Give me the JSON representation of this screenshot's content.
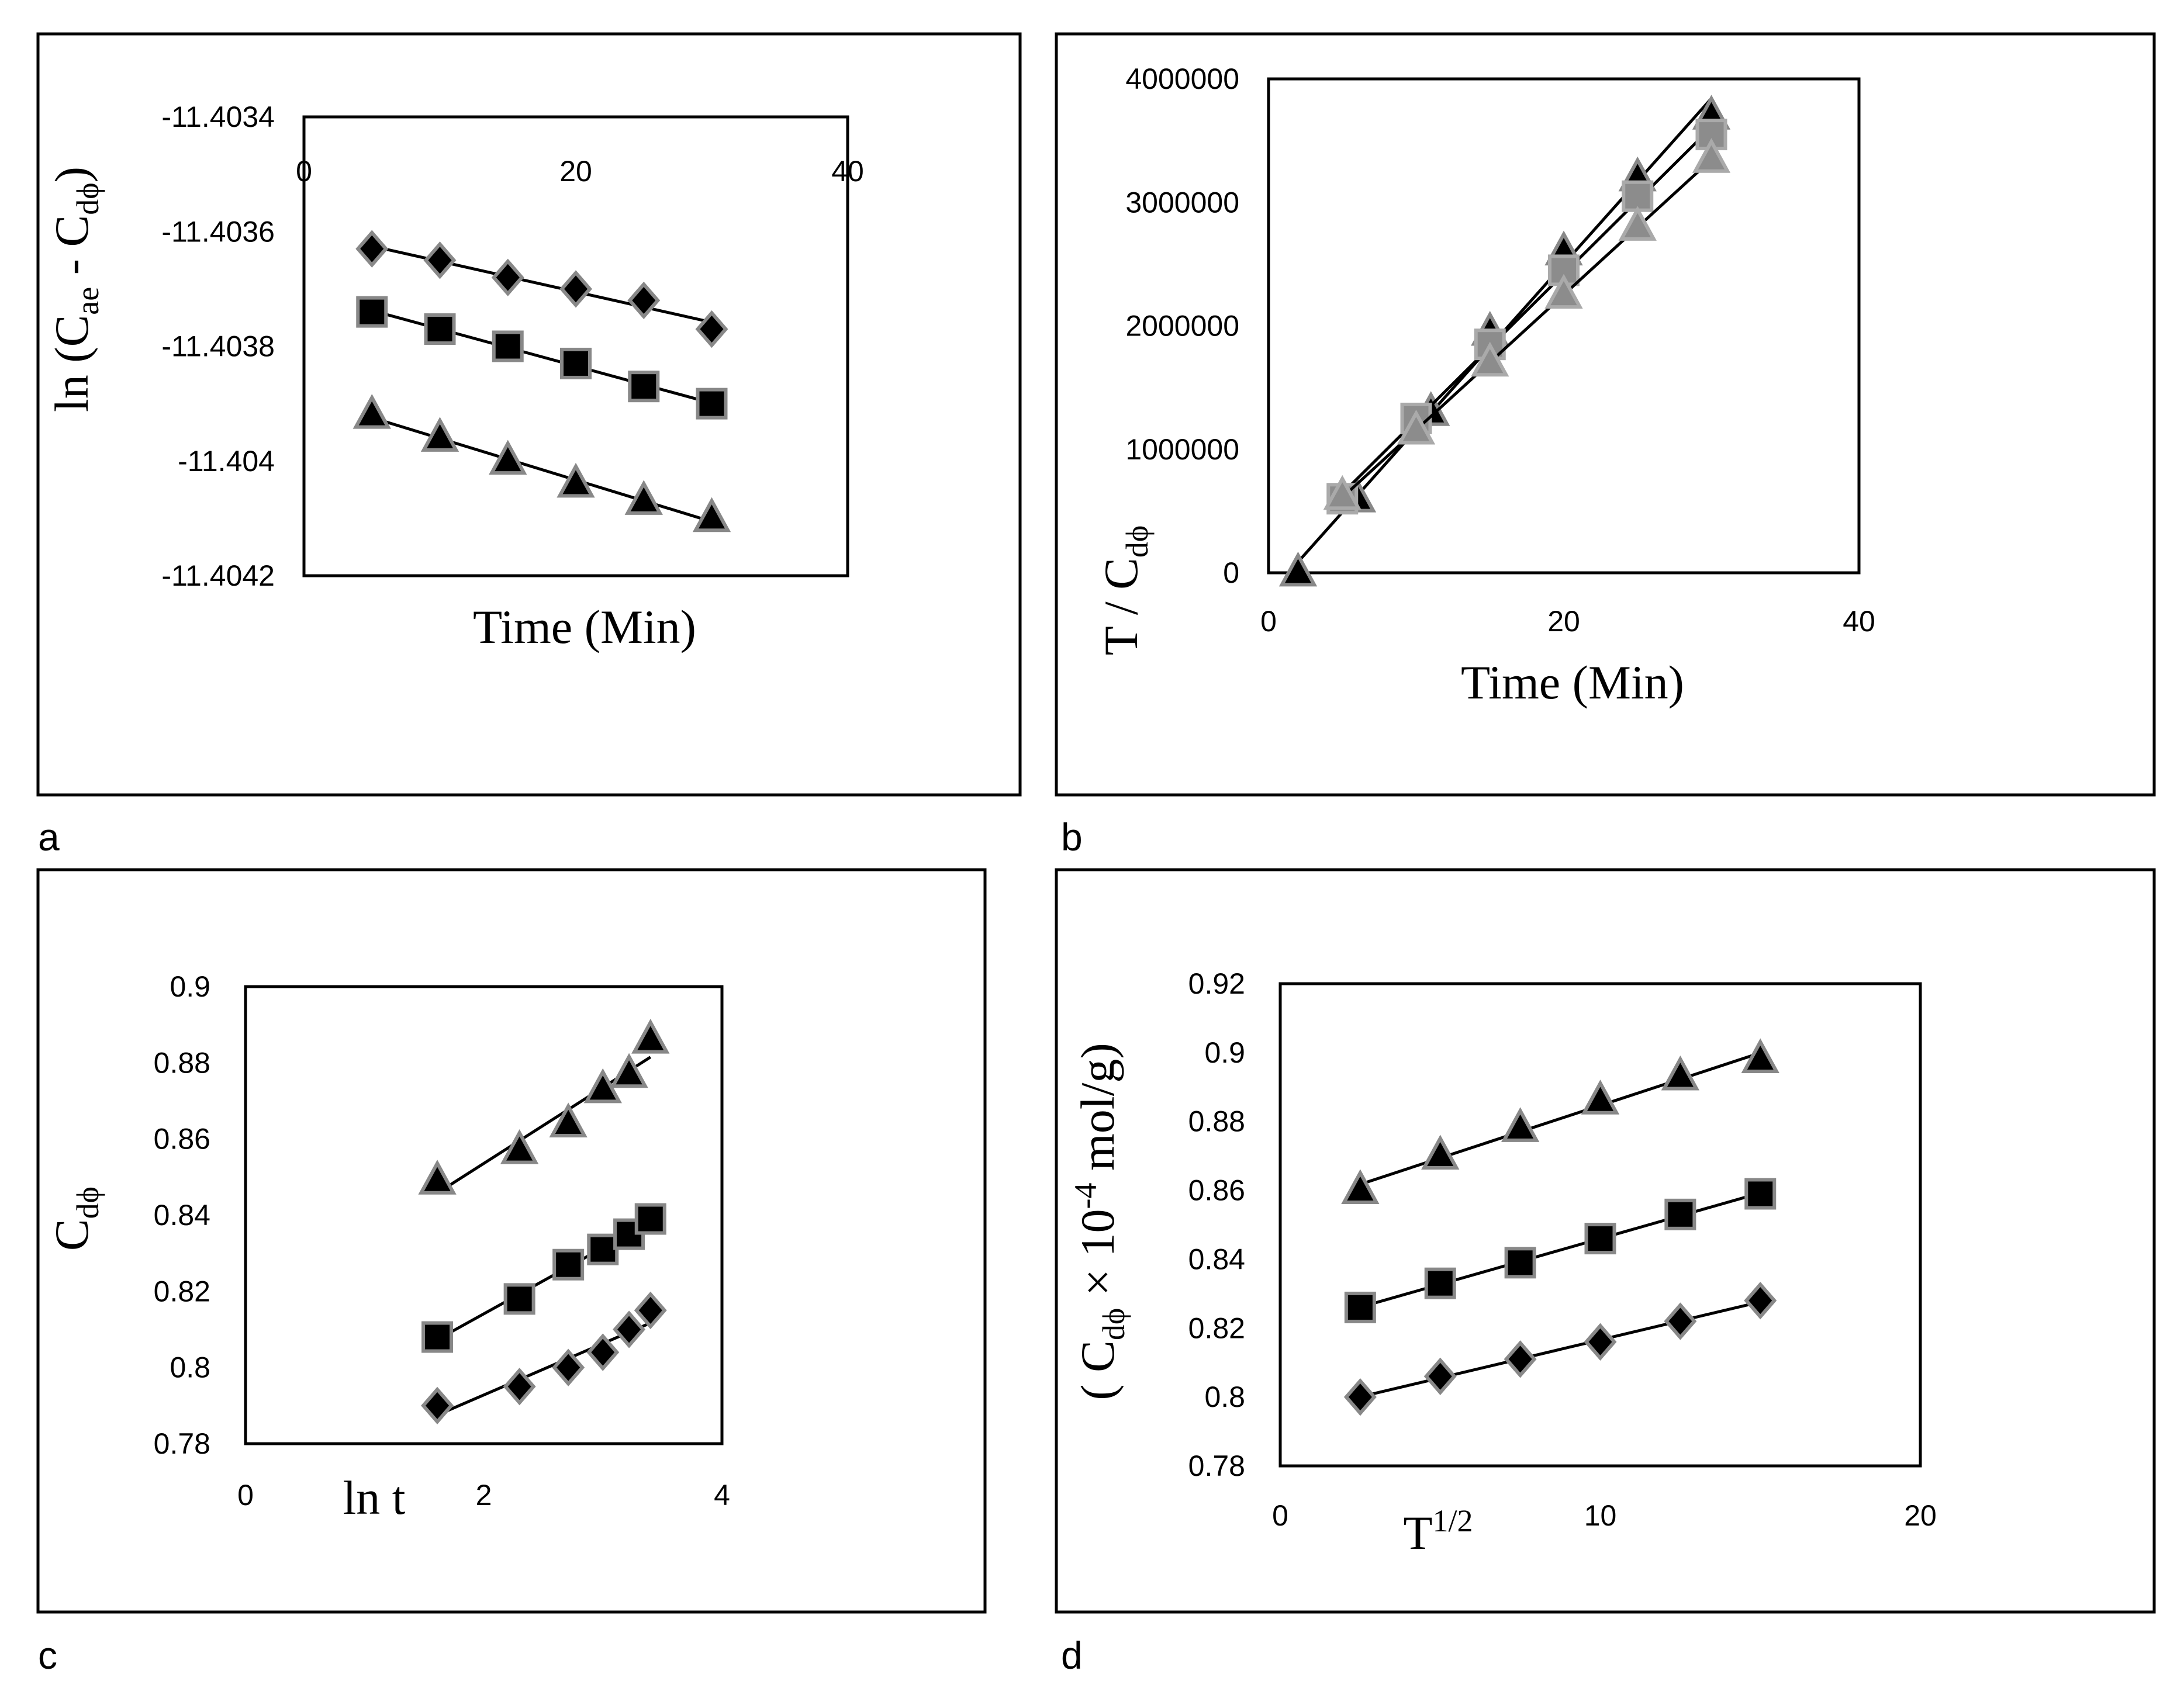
{
  "chart_data": [
    {
      "id": "a",
      "type": "scatter",
      "panel_letter": "a",
      "xlabel": "Time (Min)",
      "ylabel": {
        "prefix": "ln  (C",
        "sub1": "ae",
        "mid": " - C",
        "sub2": "dϕ",
        "suffix": ")"
      },
      "xlim": [
        0,
        40
      ],
      "ylim": [
        -11.4042,
        -11.4034
      ],
      "xticks": [
        0,
        20,
        40
      ],
      "yticks": [
        -11.4034,
        -11.4036,
        -11.4038,
        -11.404,
        -11.4042
      ],
      "ytick_labels": [
        "-11.4034",
        "-11.4036",
        "-11.4038",
        "-11.404",
        "-11.4042"
      ],
      "xaxis_position": "top",
      "series": [
        {
          "marker": "diamond",
          "x": [
            5,
            10,
            15,
            20,
            25,
            30
          ],
          "y": [
            -11.40363,
            -11.40365,
            -11.40368,
            -11.4037,
            -11.40372,
            -11.40377
          ]
        },
        {
          "marker": "square",
          "x": [
            5,
            10,
            15,
            20,
            25,
            30
          ],
          "y": [
            -11.40374,
            -11.40377,
            -11.4038,
            -11.40383,
            -11.40387,
            -11.4039
          ]
        },
        {
          "marker": "triangle",
          "x": [
            5,
            10,
            15,
            20,
            25,
            30
          ],
          "y": [
            -11.40392,
            -11.40396,
            -11.404,
            -11.40404,
            -11.40407,
            -11.4041
          ]
        }
      ]
    },
    {
      "id": "b",
      "type": "scatter",
      "panel_letter": "b",
      "xlabel": "Time (Min)",
      "ylabel": {
        "prefix": "T / C",
        "sub1": "dϕ",
        "mid": "",
        "sub2": "",
        "suffix": ""
      },
      "xlim": [
        0,
        40
      ],
      "ylim": [
        0,
        4000000
      ],
      "xticks": [
        0,
        20,
        40
      ],
      "yticks": [
        0,
        1000000,
        2000000,
        3000000,
        4000000
      ],
      "ytick_labels": [
        "0",
        "1000000",
        "2000000",
        "3000000",
        "4000000"
      ],
      "xaxis_position": "bottom",
      "series": [
        {
          "marker": "triangle",
          "x": [
            2,
            6,
            11,
            15,
            20,
            25,
            30
          ],
          "y": [
            0,
            600000,
            1300000,
            1950000,
            2600000,
            3200000,
            3700000
          ]
        },
        {
          "marker": "grey-square",
          "x": [
            5,
            10,
            15,
            20,
            25,
            30
          ],
          "y": [
            600000,
            1250000,
            1850000,
            2450000,
            3050000,
            3550000
          ]
        },
        {
          "marker": "grey-triangle",
          "x": [
            5,
            10,
            15,
            20,
            25,
            30
          ],
          "y": [
            620000,
            1150000,
            1700000,
            2250000,
            2800000,
            3350000
          ]
        }
      ]
    },
    {
      "id": "c",
      "type": "scatter",
      "panel_letter": "c",
      "xlabel": "ln t",
      "ylabel": {
        "prefix": "C",
        "sub1": "dϕ",
        "mid": "",
        "sub2": "",
        "suffix": ""
      },
      "xlim": [
        0,
        4
      ],
      "ylim": [
        0.78,
        0.9
      ],
      "xticks": [
        0,
        2,
        4
      ],
      "yticks": [
        0.78,
        0.8,
        0.82,
        0.84,
        0.86,
        0.88,
        0.9
      ],
      "ytick_labels": [
        "0.78",
        "0.8",
        "0.82",
        "0.84",
        "0.86",
        "0.88",
        "0.9"
      ],
      "xaxis_position": "bottom",
      "series": [
        {
          "marker": "triangle",
          "x": [
            1.61,
            2.3,
            2.71,
            3.0,
            3.22,
            3.4
          ],
          "y": [
            0.849,
            0.857,
            0.864,
            0.873,
            0.877,
            0.886
          ]
        },
        {
          "marker": "square",
          "x": [
            1.61,
            2.3,
            2.71,
            3.0,
            3.22,
            3.4
          ],
          "y": [
            0.808,
            0.818,
            0.827,
            0.831,
            0.835,
            0.839
          ]
        },
        {
          "marker": "diamond",
          "x": [
            1.61,
            2.3,
            2.71,
            3.0,
            3.22,
            3.4
          ],
          "y": [
            0.79,
            0.795,
            0.8,
            0.804,
            0.81,
            0.815
          ]
        }
      ]
    },
    {
      "id": "d",
      "type": "scatter",
      "panel_letter": "d",
      "xlabel": {
        "base": "T",
        "sup": "1/2"
      },
      "ylabel": {
        "prefix": "( C",
        "sub1": "dϕ",
        "mid": " × 10",
        "sup": "-4",
        "suffix": "  mol/g)"
      },
      "xlim": [
        0,
        20
      ],
      "ylim": [
        0.78,
        0.92
      ],
      "xticks": [
        0,
        10,
        20
      ],
      "yticks": [
        0.78,
        0.8,
        0.82,
        0.84,
        0.86,
        0.88,
        0.9,
        0.92
      ],
      "ytick_labels": [
        "0.78",
        "0.8",
        "0.82",
        "0.84",
        "0.86",
        "0.88",
        "0.9",
        "0.92"
      ],
      "xaxis_position": "bottom",
      "series": [
        {
          "marker": "triangle",
          "x": [
            2.5,
            5,
            7.5,
            10,
            12.5,
            15
          ],
          "y": [
            0.86,
            0.87,
            0.878,
            0.886,
            0.893,
            0.898
          ]
        },
        {
          "marker": "square",
          "x": [
            2.5,
            5,
            7.5,
            10,
            12.5,
            15
          ],
          "y": [
            0.826,
            0.833,
            0.839,
            0.846,
            0.853,
            0.859
          ]
        },
        {
          "marker": "diamond",
          "x": [
            2.5,
            5,
            7.5,
            10,
            12.5,
            15
          ],
          "y": [
            0.8,
            0.806,
            0.811,
            0.816,
            0.822,
            0.828
          ]
        }
      ]
    }
  ]
}
